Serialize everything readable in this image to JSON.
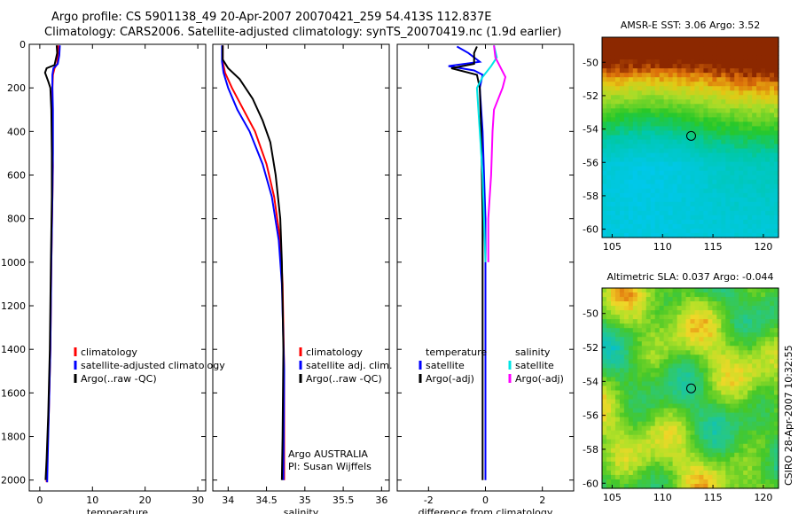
{
  "header": {
    "line1": "Argo profile: CS 5901138_49 20-Apr-2007 20070421_259 54.413S 112.837E",
    "line2": "Climatology: CARS2006. Satellite-adjusted climatology: synTS_20070419.nc (1.9d earlier)"
  },
  "colors": {
    "climatology": "#ff0000",
    "satellite": "#0000ff",
    "argo": "#000000",
    "sat_cyan": "#00e5e5",
    "argo_magenta": "#ff00ff"
  },
  "chart_data": [
    {
      "type": "line",
      "name": "temperature",
      "xlabel": "temperature",
      "ylabel": "",
      "xlim": [
        -2,
        31.5
      ],
      "ylim": [
        2050,
        0
      ],
      "xticks": [
        0,
        10,
        20,
        30
      ],
      "xtick_labels": [
        "0",
        "10",
        "20",
        "30"
      ],
      "yticks": [
        0,
        200,
        400,
        600,
        800,
        1000,
        1200,
        1400,
        1600,
        1800,
        2000
      ],
      "ytick_labels": [
        "0",
        "200",
        "400",
        "600",
        "800",
        "1000",
        "1200",
        "1400",
        "1600",
        "1800",
        "2000"
      ],
      "legend": [
        "climatology",
        "satellite-adjusted climatology",
        "Argo(..raw -QC)"
      ],
      "legend_location": "lower-left",
      "series": [
        {
          "name": "climatology",
          "points": [
            [
              3.5,
              5
            ],
            [
              3.4,
              50
            ],
            [
              3.3,
              90
            ],
            [
              2.8,
              110
            ],
            [
              2.5,
              140
            ],
            [
              2.4,
              200
            ],
            [
              2.4,
              300
            ],
            [
              2.45,
              500
            ],
            [
              2.5,
              560
            ],
            [
              2.4,
              700
            ],
            [
              2.2,
              1000
            ],
            [
              2.0,
              1400
            ],
            [
              1.7,
              1700
            ],
            [
              1.4,
              1900
            ],
            [
              1.3,
              2010
            ]
          ]
        },
        {
          "name": "satellite-adjusted climatology",
          "points": [
            [
              3.8,
              5
            ],
            [
              3.7,
              50
            ],
            [
              3.4,
              90
            ],
            [
              2.6,
              110
            ],
            [
              2.4,
              140
            ],
            [
              2.4,
              200
            ],
            [
              2.5,
              300
            ],
            [
              2.5,
              500
            ],
            [
              2.4,
              700
            ],
            [
              2.2,
              1000
            ],
            [
              2.0,
              1400
            ],
            [
              1.7,
              1700
            ],
            [
              1.5,
              1900
            ],
            [
              1.4,
              2010
            ]
          ]
        },
        {
          "name": "Argo(..raw -QC)",
          "points": [
            [
              3.2,
              5
            ],
            [
              3.3,
              40
            ],
            [
              2.8,
              95
            ],
            [
              1.3,
              110
            ],
            [
              1.0,
              130
            ],
            [
              1.6,
              170
            ],
            [
              2.0,
              200
            ],
            [
              2.2,
              300
            ],
            [
              2.3,
              500
            ],
            [
              2.3,
              700
            ],
            [
              2.1,
              1000
            ],
            [
              1.9,
              1400
            ],
            [
              1.6,
              1700
            ],
            [
              1.3,
              1900
            ],
            [
              1.1,
              2000
            ]
          ]
        }
      ]
    },
    {
      "type": "line",
      "name": "salinity",
      "xlabel": "salinity",
      "xlim": [
        33.8,
        36.1
      ],
      "ylim": [
        2050,
        0
      ],
      "xticks": [
        34,
        34.5,
        35,
        35.5,
        36
      ],
      "xtick_labels": [
        "34",
        "34.5",
        "35",
        "35.5",
        "36"
      ],
      "legend": [
        "climatology",
        "satellite adj. clim.",
        "Argo(..raw -QC)"
      ],
      "legend_location": "lower-right",
      "annotations": [
        "Argo AUSTRALIA",
        "PI: Susan Wijffels"
      ],
      "series": [
        {
          "name": "climatology",
          "points": [
            [
              33.93,
              5
            ],
            [
              33.93,
              80
            ],
            [
              33.96,
              130
            ],
            [
              34.05,
              200
            ],
            [
              34.2,
              300
            ],
            [
              34.35,
              400
            ],
            [
              34.5,
              550
            ],
            [
              34.6,
              700
            ],
            [
              34.68,
              900
            ],
            [
              34.71,
              1100
            ],
            [
              34.73,
              1500
            ],
            [
              34.73,
              2000
            ]
          ]
        },
        {
          "name": "satellite adj. clim.",
          "points": [
            [
              33.92,
              5
            ],
            [
              33.92,
              80
            ],
            [
              33.94,
              130
            ],
            [
              34.0,
              200
            ],
            [
              34.12,
              300
            ],
            [
              34.28,
              400
            ],
            [
              34.45,
              550
            ],
            [
              34.57,
              700
            ],
            [
              34.66,
              900
            ],
            [
              34.7,
              1100
            ],
            [
              34.73,
              1500
            ],
            [
              34.72,
              2000
            ]
          ]
        },
        {
          "name": "Argo(..raw -QC)",
          "points": [
            [
              33.93,
              5
            ],
            [
              33.93,
              70
            ],
            [
              34.0,
              110
            ],
            [
              34.15,
              160
            ],
            [
              34.32,
              250
            ],
            [
              34.45,
              350
            ],
            [
              34.55,
              450
            ],
            [
              34.62,
              600
            ],
            [
              34.68,
              800
            ],
            [
              34.7,
              1000
            ],
            [
              34.72,
              1400
            ],
            [
              34.71,
              1800
            ],
            [
              34.7,
              2000
            ]
          ]
        }
      ]
    },
    {
      "type": "line",
      "name": "difference",
      "xlabel": "difference from climatology",
      "xlim": [
        -3.1,
        3.1
      ],
      "ylim": [
        2050,
        0
      ],
      "xticks": [
        -2,
        0,
        2
      ],
      "xtick_labels": [
        "-2",
        "0",
        "2"
      ],
      "legend_headers": [
        "temperature",
        "salinity"
      ],
      "legend": [
        "satellite",
        "Argo(-adj)",
        "satellite",
        "Argo(-adj)"
      ],
      "legend_location": "lower",
      "series": [
        {
          "name": "temperature satellite",
          "points": [
            [
              -1.0,
              10
            ],
            [
              -0.6,
              40
            ],
            [
              -0.2,
              80
            ],
            [
              -1.3,
              100
            ],
            [
              -0.4,
              120
            ],
            [
              -0.1,
              140
            ],
            [
              -0.2,
              200
            ],
            [
              -0.1,
              400
            ],
            [
              0.0,
              800
            ],
            [
              0.0,
              1200
            ],
            [
              0.0,
              2000
            ]
          ]
        },
        {
          "name": "temperature Argo(-adj)",
          "points": [
            [
              -0.3,
              10
            ],
            [
              -0.4,
              40
            ],
            [
              -0.4,
              90
            ],
            [
              -1.2,
              110
            ],
            [
              -0.3,
              140
            ],
            [
              -0.2,
              200
            ],
            [
              -0.15,
              400
            ],
            [
              -0.1,
              800
            ],
            [
              -0.1,
              1200
            ],
            [
              -0.1,
              2000
            ]
          ]
        },
        {
          "name": "salinity satellite",
          "points": [
            [
              0.3,
              5
            ],
            [
              0.4,
              60
            ],
            [
              0.2,
              100
            ],
            [
              -0.1,
              150
            ],
            [
              -0.3,
              200
            ],
            [
              -0.2,
              400
            ],
            [
              -0.1,
              600
            ],
            [
              -0.05,
              800
            ],
            [
              0.0,
              1000
            ]
          ]
        },
        {
          "name": "salinity Argo(-adj)",
          "points": [
            [
              0.3,
              5
            ],
            [
              0.35,
              60
            ],
            [
              0.7,
              150
            ],
            [
              0.6,
              200
            ],
            [
              0.3,
              300
            ],
            [
              0.25,
              400
            ],
            [
              0.2,
              600
            ],
            [
              0.1,
              800
            ],
            [
              0.1,
              1000
            ]
          ]
        }
      ]
    },
    {
      "type": "heatmap",
      "name": "AMSR-E SST",
      "title": "AMSR-E SST: 3.06 Argo: 3.52",
      "xlim": [
        104,
        121.5
      ],
      "ylim": [
        -60.5,
        -48.5
      ],
      "xticks": [
        105,
        110,
        115,
        120
      ],
      "xtick_labels": [
        "105",
        "110",
        "115",
        "120"
      ],
      "yticks": [
        -50,
        -52,
        -54,
        -56,
        -58,
        -60
      ],
      "ytick_labels": [
        "-50",
        "-52",
        "-54",
        "-56",
        "-58",
        "-60"
      ],
      "marker": [
        112.837,
        -54.413
      ]
    },
    {
      "type": "heatmap",
      "name": "Altimetric SLA",
      "title": "Altimetric SLA: 0.037 Argo: -0.044",
      "xlim": [
        104,
        121.5
      ],
      "ylim": [
        -60.3,
        -48.5
      ],
      "xticks": [
        105,
        110,
        115,
        120
      ],
      "xtick_labels": [
        "105",
        "110",
        "115",
        "120"
      ],
      "yticks": [
        -50,
        -52,
        -54,
        -56,
        -58,
        -60
      ],
      "ytick_labels": [
        "-50",
        "-52",
        "-54",
        "-56",
        "-58",
        "-60"
      ],
      "marker": [
        112.837,
        -54.413
      ]
    }
  ],
  "footer": {
    "stamp": "CSIRO 28-Apr-2007 10:32:55"
  }
}
